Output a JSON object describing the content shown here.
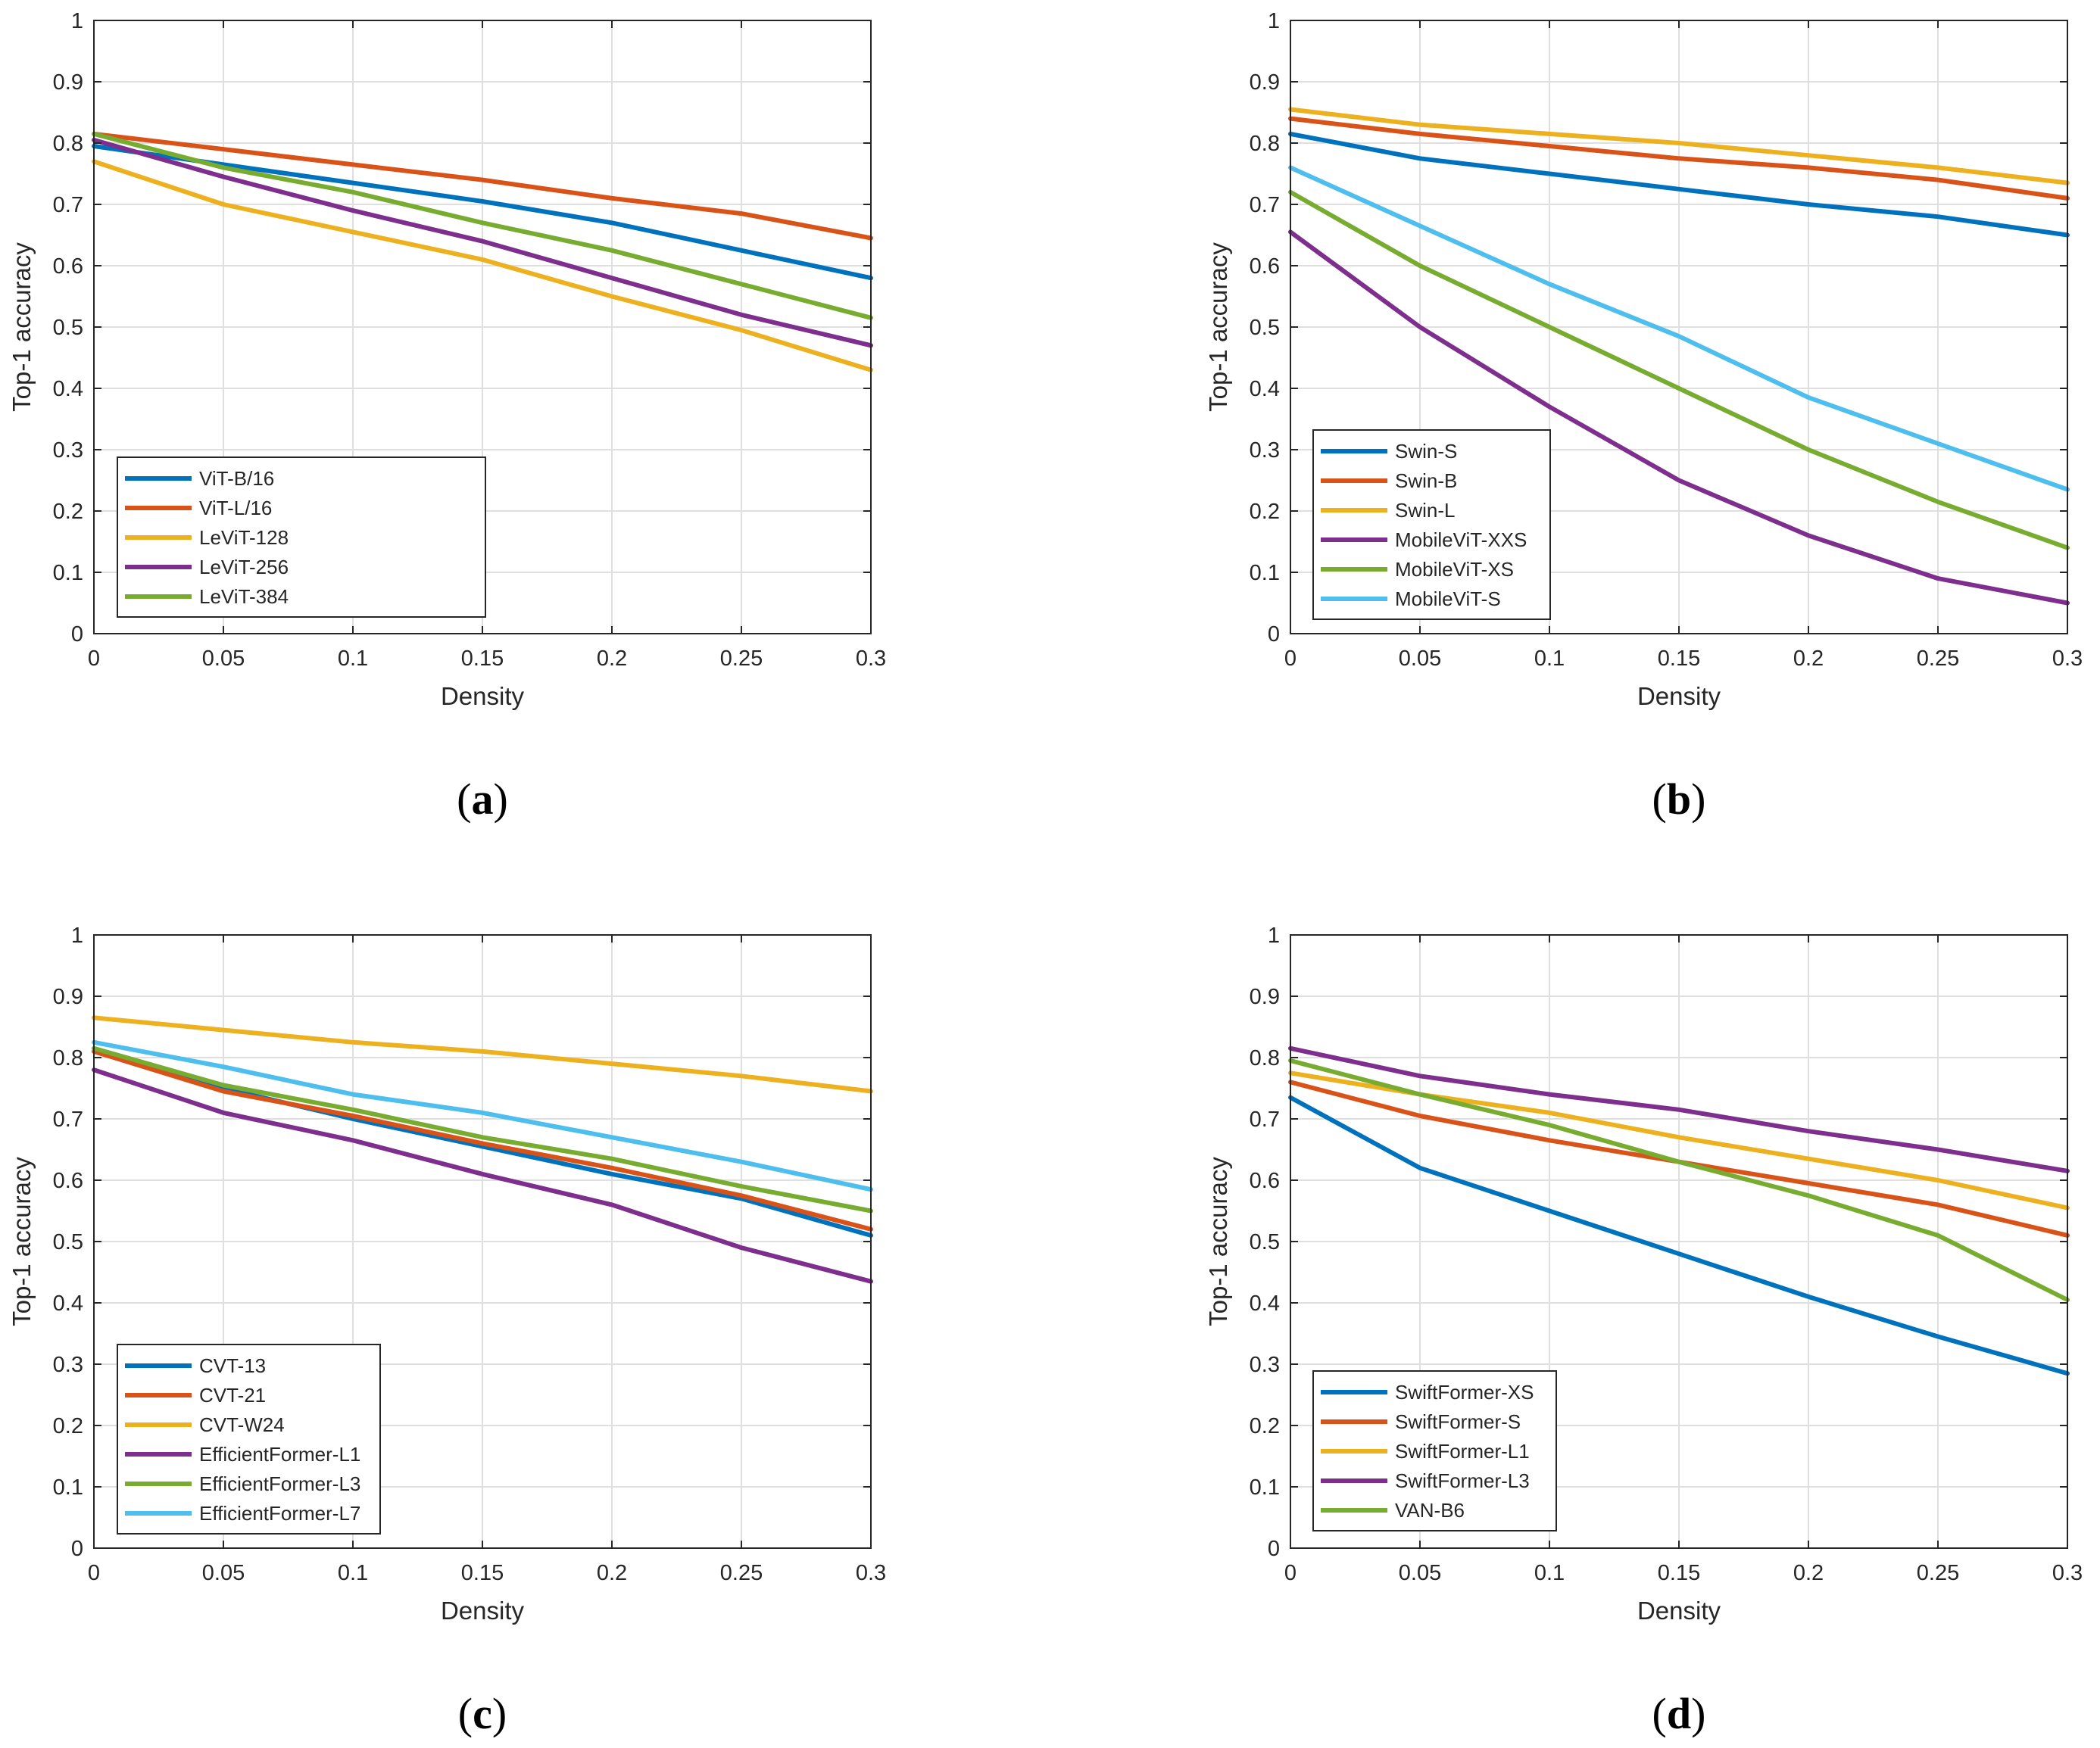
{
  "colors": {
    "blue": "#0072BD",
    "orange": "#D95319",
    "yellow": "#EDB120",
    "purple": "#7E2F8E",
    "green": "#77AC30",
    "cyan": "#4DBEEE",
    "axis": "#262626",
    "grid": "#dfdfdf"
  },
  "chart_data": [
    {
      "type": "line",
      "panel": "a",
      "caption": "(a)",
      "caption_letter": "a",
      "xlabel": "Density",
      "ylabel": "Top-1 accuracy",
      "xlim": [
        0,
        0.3
      ],
      "ylim": [
        0,
        1
      ],
      "x_ticks": [
        0,
        0.05,
        0.1,
        0.15,
        0.2,
        0.25,
        0.3
      ],
      "x_tick_labels": [
        "0",
        "0.05",
        "0.1",
        "0.15",
        "0.2",
        "0.25",
        "0.3"
      ],
      "y_ticks": [
        0,
        0.1,
        0.2,
        0.3,
        0.4,
        0.5,
        0.6,
        0.7,
        0.8,
        0.9,
        1
      ],
      "y_tick_labels": [
        "0",
        "0.1",
        "0.2",
        "0.3",
        "0.4",
        "0.5",
        "0.6",
        "0.7",
        "0.8",
        "0.9",
        "1"
      ],
      "grid": true,
      "legend_position": "bottom-left",
      "x": [
        0,
        0.05,
        0.1,
        0.15,
        0.2,
        0.25,
        0.3
      ],
      "series": [
        {
          "name": "ViT-B/16",
          "color": "#0072BD",
          "values": [
            0.795,
            0.765,
            0.735,
            0.705,
            0.67,
            0.625,
            0.58
          ]
        },
        {
          "name": "ViT-L/16",
          "color": "#D95319",
          "values": [
            0.815,
            0.79,
            0.765,
            0.74,
            0.71,
            0.685,
            0.645
          ]
        },
        {
          "name": "LeViT-128",
          "color": "#EDB120",
          "values": [
            0.77,
            0.7,
            0.655,
            0.61,
            0.55,
            0.495,
            0.43
          ]
        },
        {
          "name": "LeViT-256",
          "color": "#7E2F8E",
          "values": [
            0.805,
            0.745,
            0.69,
            0.64,
            0.58,
            0.52,
            0.47
          ]
        },
        {
          "name": "LeViT-384",
          "color": "#77AC30",
          "values": [
            0.815,
            0.76,
            0.72,
            0.67,
            0.625,
            0.57,
            0.515
          ]
        }
      ]
    },
    {
      "type": "line",
      "panel": "b",
      "caption": "(b)",
      "caption_letter": "b",
      "xlabel": "Density",
      "ylabel": "Top-1 accuracy",
      "xlim": [
        0,
        0.3
      ],
      "ylim": [
        0,
        1
      ],
      "x_ticks": [
        0,
        0.05,
        0.1,
        0.15,
        0.2,
        0.25,
        0.3
      ],
      "x_tick_labels": [
        "0",
        "0.05",
        "0.1",
        "0.15",
        "0.2",
        "0.25",
        "0.3"
      ],
      "y_ticks": [
        0,
        0.1,
        0.2,
        0.3,
        0.4,
        0.5,
        0.6,
        0.7,
        0.8,
        0.9,
        1
      ],
      "y_tick_labels": [
        "0",
        "0.1",
        "0.2",
        "0.3",
        "0.4",
        "0.5",
        "0.6",
        "0.7",
        "0.8",
        "0.9",
        "1"
      ],
      "grid": true,
      "legend_position": "bottom-left",
      "x": [
        0,
        0.05,
        0.1,
        0.15,
        0.2,
        0.25,
        0.3
      ],
      "series": [
        {
          "name": "Swin-S",
          "color": "#0072BD",
          "values": [
            0.815,
            0.775,
            0.75,
            0.725,
            0.7,
            0.68,
            0.65
          ]
        },
        {
          "name": "Swin-B",
          "color": "#D95319",
          "values": [
            0.84,
            0.815,
            0.795,
            0.775,
            0.76,
            0.74,
            0.71
          ]
        },
        {
          "name": "Swin-L",
          "color": "#EDB120",
          "values": [
            0.855,
            0.83,
            0.815,
            0.8,
            0.78,
            0.76,
            0.735
          ]
        },
        {
          "name": "MobileViT-XXS",
          "color": "#7E2F8E",
          "values": [
            0.655,
            0.5,
            0.37,
            0.25,
            0.16,
            0.09,
            0.05
          ]
        },
        {
          "name": "MobileViT-XS",
          "color": "#77AC30",
          "values": [
            0.72,
            0.6,
            0.5,
            0.4,
            0.3,
            0.215,
            0.14
          ]
        },
        {
          "name": "MobileViT-S",
          "color": "#4DBEEE",
          "values": [
            0.76,
            0.665,
            0.57,
            0.485,
            0.385,
            0.31,
            0.235
          ]
        }
      ]
    },
    {
      "type": "line",
      "panel": "c",
      "caption": "(c)",
      "caption_letter": "c",
      "xlabel": "Density",
      "ylabel": "Top-1 accuracy",
      "xlim": [
        0,
        0.3
      ],
      "ylim": [
        0,
        1
      ],
      "x_ticks": [
        0,
        0.05,
        0.1,
        0.15,
        0.2,
        0.25,
        0.3
      ],
      "x_tick_labels": [
        "0",
        "0.05",
        "0.1",
        "0.15",
        "0.2",
        "0.25",
        "0.3"
      ],
      "y_ticks": [
        0,
        0.1,
        0.2,
        0.3,
        0.4,
        0.5,
        0.6,
        0.7,
        0.8,
        0.9,
        1
      ],
      "y_tick_labels": [
        "0",
        "0.1",
        "0.2",
        "0.3",
        "0.4",
        "0.5",
        "0.6",
        "0.7",
        "0.8",
        "0.9",
        "1"
      ],
      "grid": true,
      "legend_position": "bottom-left",
      "x": [
        0,
        0.05,
        0.1,
        0.15,
        0.2,
        0.25,
        0.3
      ],
      "series": [
        {
          "name": "CVT-13",
          "color": "#0072BD",
          "values": [
            0.81,
            0.75,
            0.7,
            0.655,
            0.61,
            0.57,
            0.51
          ]
        },
        {
          "name": "CVT-21",
          "color": "#D95319",
          "values": [
            0.81,
            0.745,
            0.705,
            0.66,
            0.62,
            0.575,
            0.52
          ]
        },
        {
          "name": "CVT-W24",
          "color": "#EDB120",
          "values": [
            0.865,
            0.845,
            0.825,
            0.81,
            0.79,
            0.77,
            0.745
          ]
        },
        {
          "name": "EfficientFormer-L1",
          "color": "#7E2F8E",
          "values": [
            0.78,
            0.71,
            0.665,
            0.61,
            0.56,
            0.49,
            0.435
          ]
        },
        {
          "name": "EfficientFormer-L3",
          "color": "#77AC30",
          "values": [
            0.815,
            0.755,
            0.715,
            0.67,
            0.635,
            0.59,
            0.55
          ]
        },
        {
          "name": "EfficientFormer-L7",
          "color": "#4DBEEE",
          "values": [
            0.825,
            0.785,
            0.74,
            0.71,
            0.67,
            0.63,
            0.585
          ]
        }
      ]
    },
    {
      "type": "line",
      "panel": "d",
      "caption": "(d)",
      "caption_letter": "d",
      "xlabel": "Density",
      "ylabel": "Top-1 accuracy",
      "xlim": [
        0,
        0.3
      ],
      "ylim": [
        0,
        1
      ],
      "x_ticks": [
        0,
        0.05,
        0.1,
        0.15,
        0.2,
        0.25,
        0.3
      ],
      "x_tick_labels": [
        "0",
        "0.05",
        "0.1",
        "0.15",
        "0.2",
        "0.25",
        "0.3"
      ],
      "y_ticks": [
        0,
        0.1,
        0.2,
        0.3,
        0.4,
        0.5,
        0.6,
        0.7,
        0.8,
        0.9,
        1
      ],
      "y_tick_labels": [
        "0",
        "0.1",
        "0.2",
        "0.3",
        "0.4",
        "0.5",
        "0.6",
        "0.7",
        "0.8",
        "0.9",
        "1"
      ],
      "grid": true,
      "legend_position": "bottom-left",
      "x": [
        0,
        0.05,
        0.1,
        0.15,
        0.2,
        0.25,
        0.3
      ],
      "series": [
        {
          "name": "SwiftFormer-XS",
          "color": "#0072BD",
          "values": [
            0.735,
            0.62,
            0.55,
            0.48,
            0.41,
            0.345,
            0.285
          ]
        },
        {
          "name": "SwiftFormer-S",
          "color": "#D95319",
          "values": [
            0.76,
            0.705,
            0.665,
            0.63,
            0.595,
            0.56,
            0.51
          ]
        },
        {
          "name": "SwiftFormer-L1",
          "color": "#EDB120",
          "values": [
            0.775,
            0.74,
            0.71,
            0.67,
            0.635,
            0.6,
            0.555
          ]
        },
        {
          "name": "SwiftFormer-L3",
          "color": "#7E2F8E",
          "values": [
            0.815,
            0.77,
            0.74,
            0.715,
            0.68,
            0.65,
            0.615
          ]
        },
        {
          "name": "VAN-B6",
          "color": "#77AC30",
          "values": [
            0.795,
            0.74,
            0.69,
            0.63,
            0.575,
            0.51,
            0.405
          ]
        }
      ]
    }
  ]
}
